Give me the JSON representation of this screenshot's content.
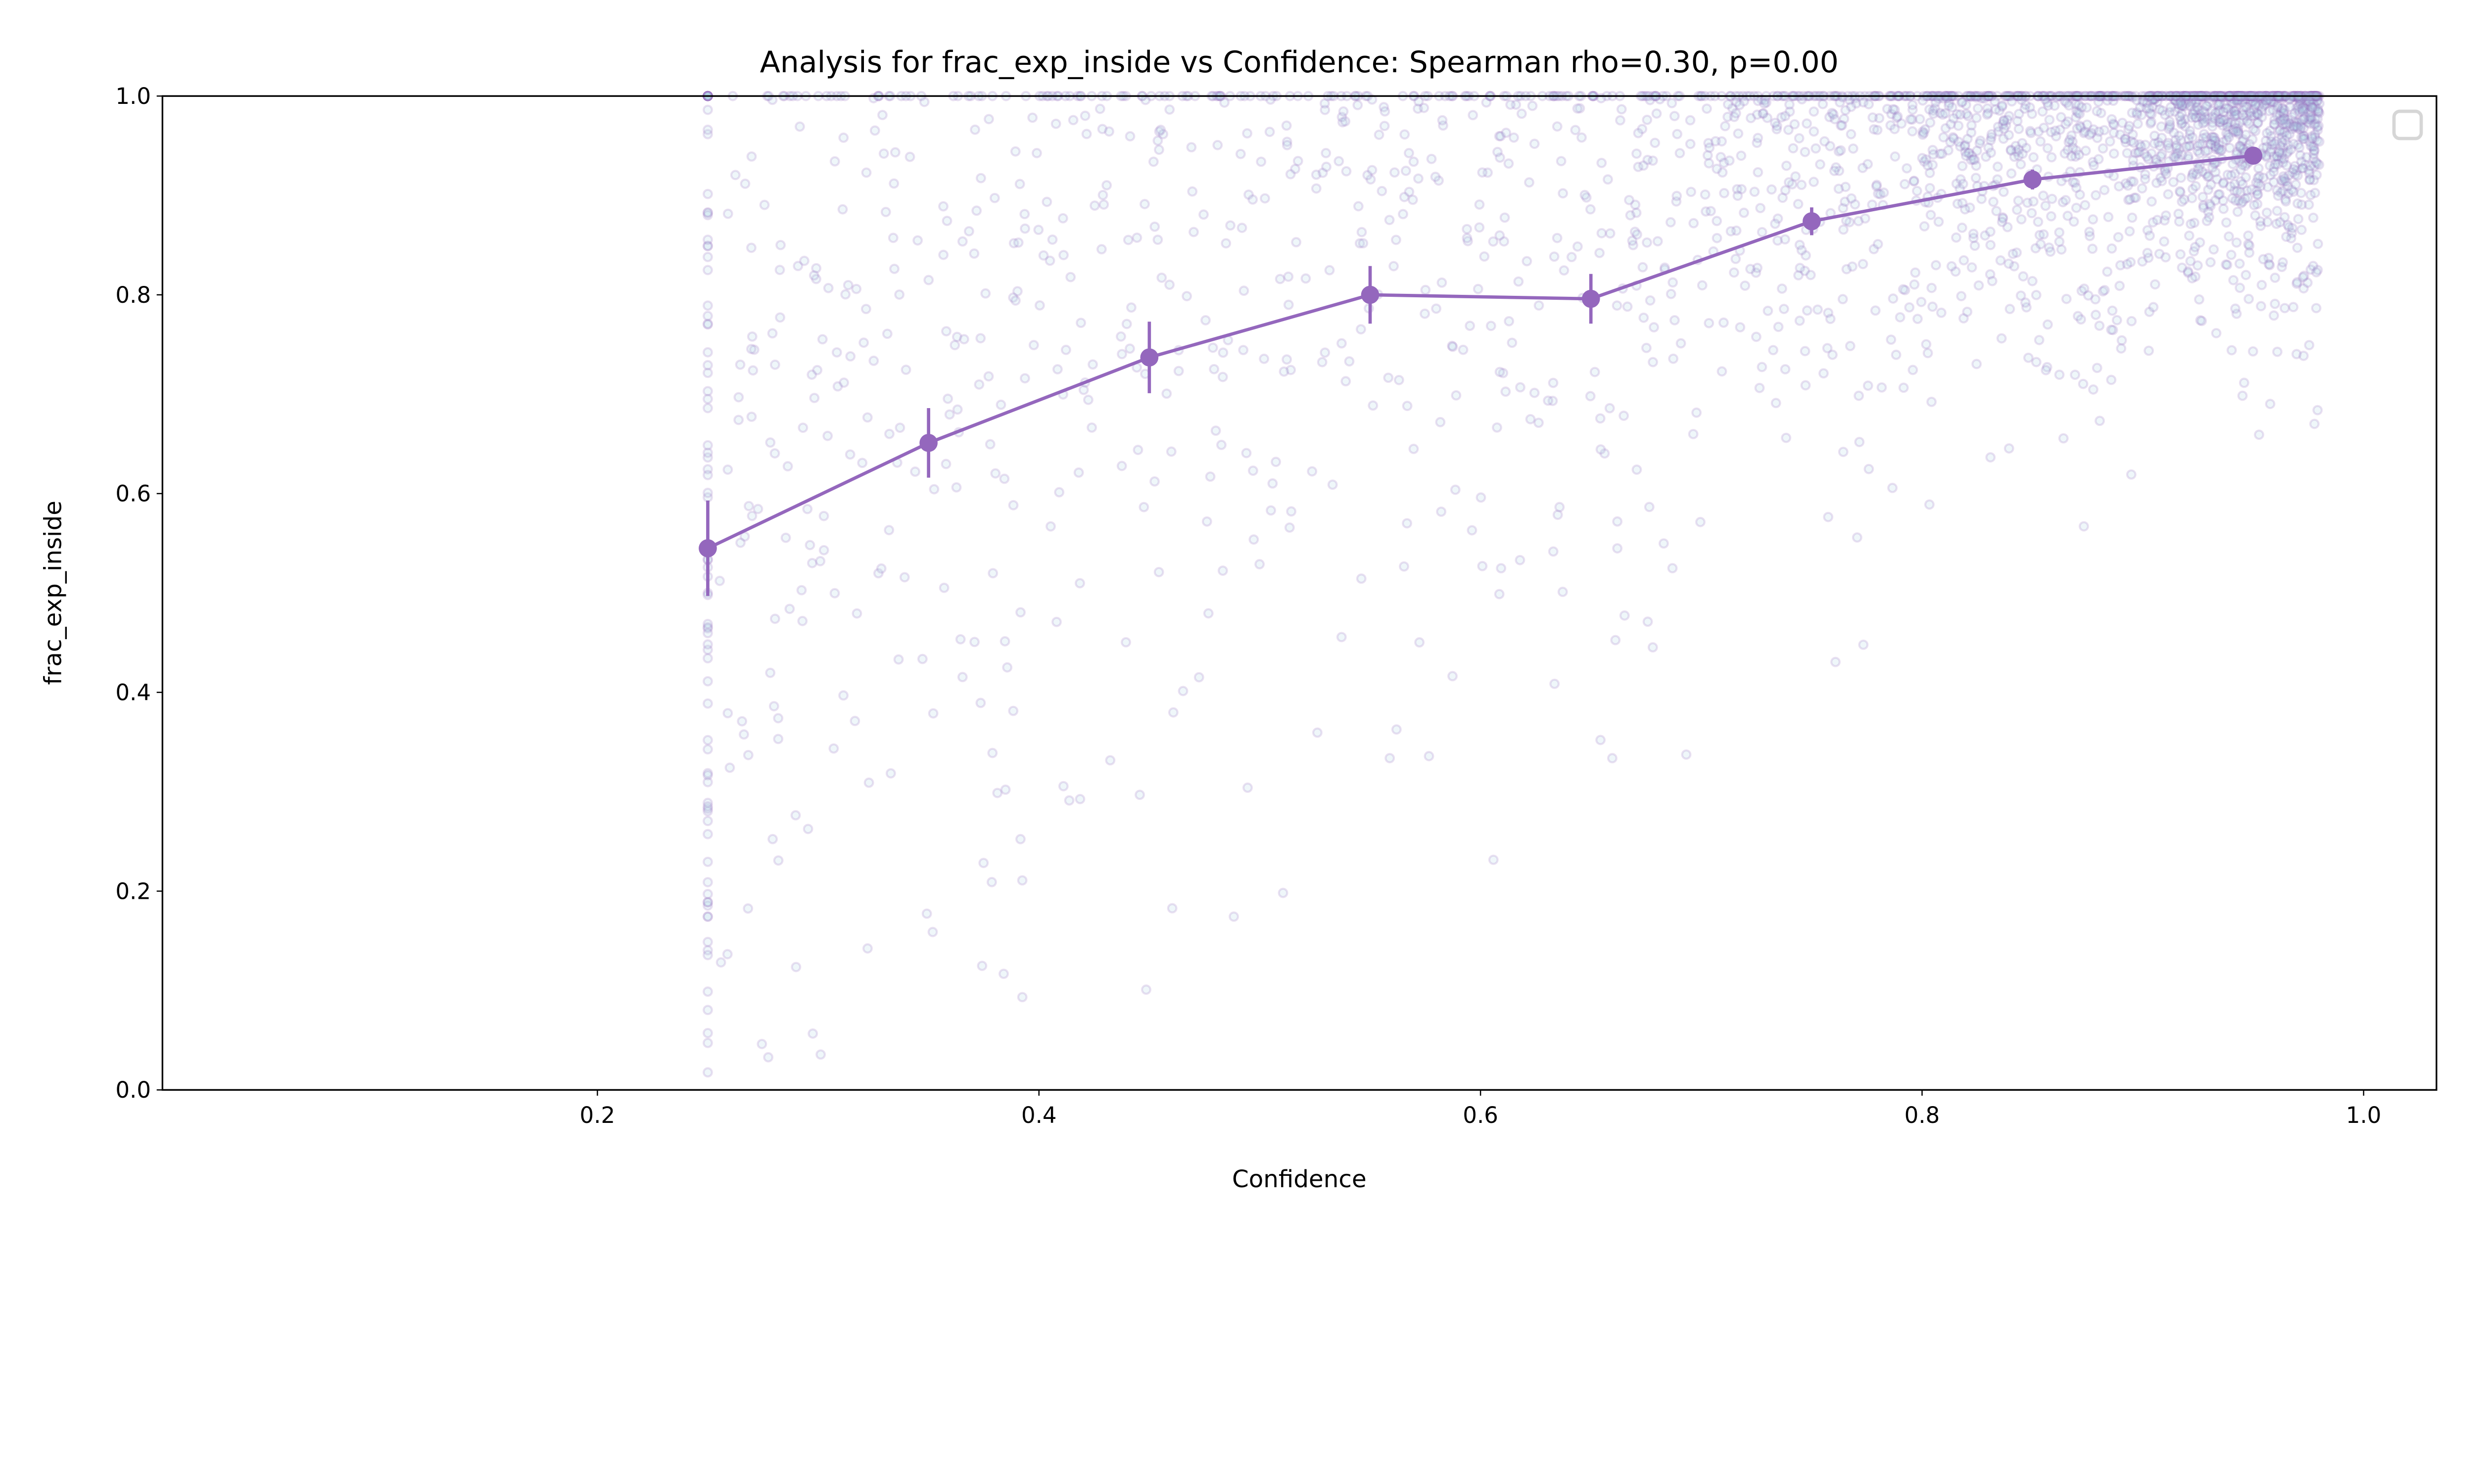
{
  "chart_data": {
    "type": "scatter",
    "title": "Analysis for frac_exp_inside vs Confidence: Spearman rho=0.30, p=0.00",
    "xlabel": "Confidence",
    "ylabel": "frac_exp_inside",
    "xlim": [
      0.003,
      1.033
    ],
    "ylim": [
      0.0,
      1.0
    ],
    "xticks": [
      0.2,
      0.4,
      0.6,
      0.8,
      1.0
    ],
    "xtick_labels": [
      "0.2",
      "0.4",
      "0.6",
      "0.8",
      "1.0"
    ],
    "yticks": [
      0.0,
      0.2,
      0.4,
      0.6,
      0.8,
      1.0
    ],
    "ytick_labels": [
      "0.0",
      "0.2",
      "0.4",
      "0.6",
      "0.8",
      "1.0"
    ],
    "grid": false,
    "legend": {
      "placement": "top-right",
      "entries": []
    },
    "colors": {
      "binned_line": "#9467bd",
      "scatter_edge": "#9467bd",
      "scatter_fill": "#add8e6"
    },
    "scatter_alpha": 0.2,
    "binned_means": {
      "x": [
        0.25,
        0.35,
        0.45,
        0.55,
        0.65,
        0.75,
        0.85,
        0.95
      ],
      "y": [
        0.545,
        0.651,
        0.737,
        0.8,
        0.796,
        0.874,
        0.916,
        0.94
      ],
      "yerr": [
        0.048,
        0.035,
        0.036,
        0.029,
        0.025,
        0.014,
        0.01,
        0.008
      ]
    },
    "scatter_x_range": [
      0.25,
      0.98
    ]
  }
}
